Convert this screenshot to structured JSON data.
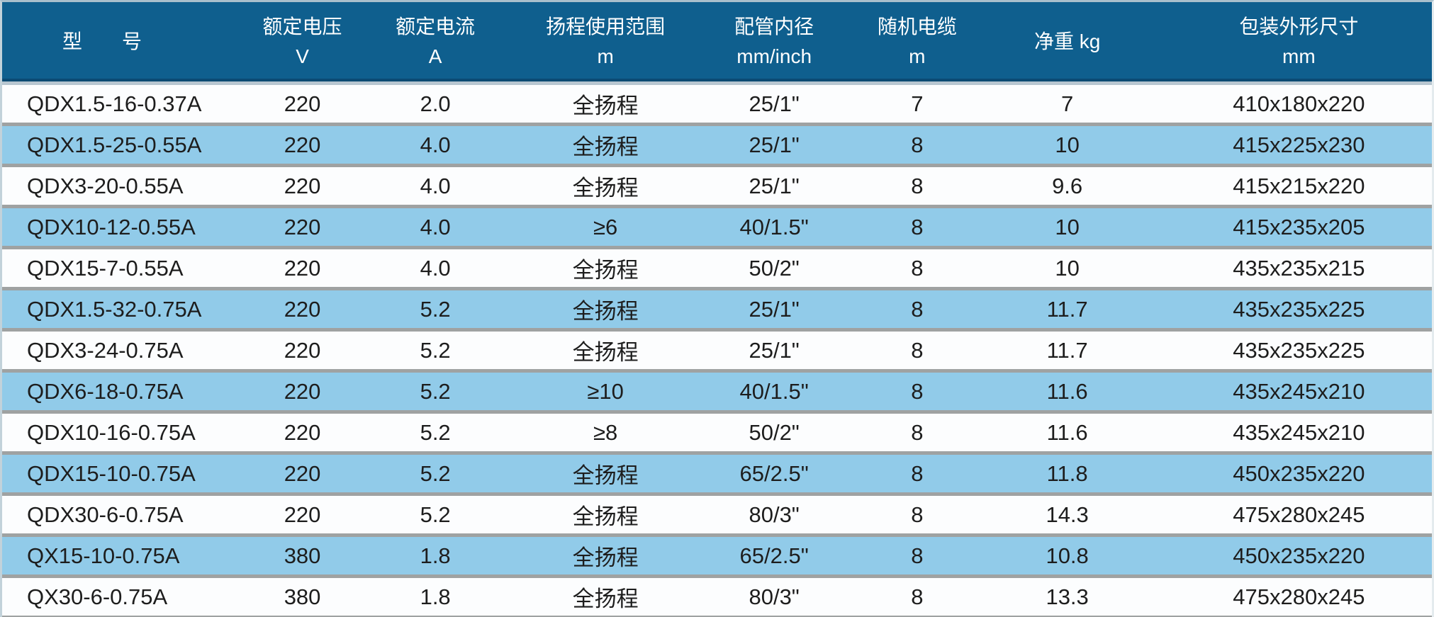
{
  "table": {
    "columns": [
      {
        "key": "model",
        "line1": "型　　号",
        "line2": ""
      },
      {
        "key": "rated-voltage",
        "line1": "额定电压",
        "line2": "V"
      },
      {
        "key": "rated-current",
        "line1": "额定电流",
        "line2": "A"
      },
      {
        "key": "head-range",
        "line1": "扬程使用范围",
        "line2": "m"
      },
      {
        "key": "pipe-diameter",
        "line1": "配管内径",
        "line2": "mm/inch"
      },
      {
        "key": "cable-length",
        "line1": "随机电缆",
        "line2": "m"
      },
      {
        "key": "net-weight",
        "line1": "净重 kg",
        "line2": ""
      },
      {
        "key": "package-size",
        "line1": "包装外形尺寸",
        "line2": "mm"
      }
    ],
    "rows": [
      [
        "QDX1.5-16-0.37A",
        "220",
        "2.0",
        "全扬程",
        "25/1\"",
        "7",
        "7",
        "410x180x220"
      ],
      [
        "QDX1.5-25-0.55A",
        "220",
        "4.0",
        "全扬程",
        "25/1\"",
        "8",
        "10",
        "415x225x230"
      ],
      [
        "QDX3-20-0.55A",
        "220",
        "4.0",
        "全扬程",
        "25/1\"",
        "8",
        "9.6",
        "415x215x220"
      ],
      [
        "QDX10-12-0.55A",
        "220",
        "4.0",
        "≥6",
        "40/1.5\"",
        "8",
        "10",
        "415x235x205"
      ],
      [
        "QDX15-7-0.55A",
        "220",
        "4.0",
        "全扬程",
        "50/2\"",
        "8",
        "10",
        "435x235x215"
      ],
      [
        "QDX1.5-32-0.75A",
        "220",
        "5.2",
        "全扬程",
        "25/1\"",
        "8",
        "11.7",
        "435x235x225"
      ],
      [
        "QDX3-24-0.75A",
        "220",
        "5.2",
        "全扬程",
        "25/1\"",
        "8",
        "11.7",
        "435x235x225"
      ],
      [
        "QDX6-18-0.75A",
        "220",
        "5.2",
        "≥10",
        "40/1.5\"",
        "8",
        "11.6",
        "435x245x210"
      ],
      [
        "QDX10-16-0.75A",
        "220",
        "5.2",
        "≥8",
        "50/2\"",
        "8",
        "11.6",
        "435x245x210"
      ],
      [
        "QDX15-10-0.75A",
        "220",
        "5.2",
        "全扬程",
        "65/2.5\"",
        "8",
        "11.8",
        "450x235x220"
      ],
      [
        "QDX30-6-0.75A",
        "220",
        "5.2",
        "全扬程",
        "80/3\"",
        "8",
        "14.3",
        "475x280x245"
      ],
      [
        "QX15-10-0.75A",
        "380",
        "1.8",
        "全扬程",
        "65/2.5\"",
        "8",
        "10.8",
        "450x235x220"
      ],
      [
        "QX30-6-0.75A",
        "380",
        "1.8",
        "全扬程",
        "80/3\"",
        "8",
        "13.3",
        "475x280x245"
      ]
    ],
    "colors": {
      "header_bg": "#0f5f8e",
      "header_edge": "#0b4a73",
      "under_header_line": "#b7c6d0",
      "row_bg": "#fcfdfe",
      "row_alt_bg": "#91cbe9",
      "separator": "#9fa2a2",
      "header_text": "#ffffff",
      "body_text": "#1d1d1d"
    }
  }
}
